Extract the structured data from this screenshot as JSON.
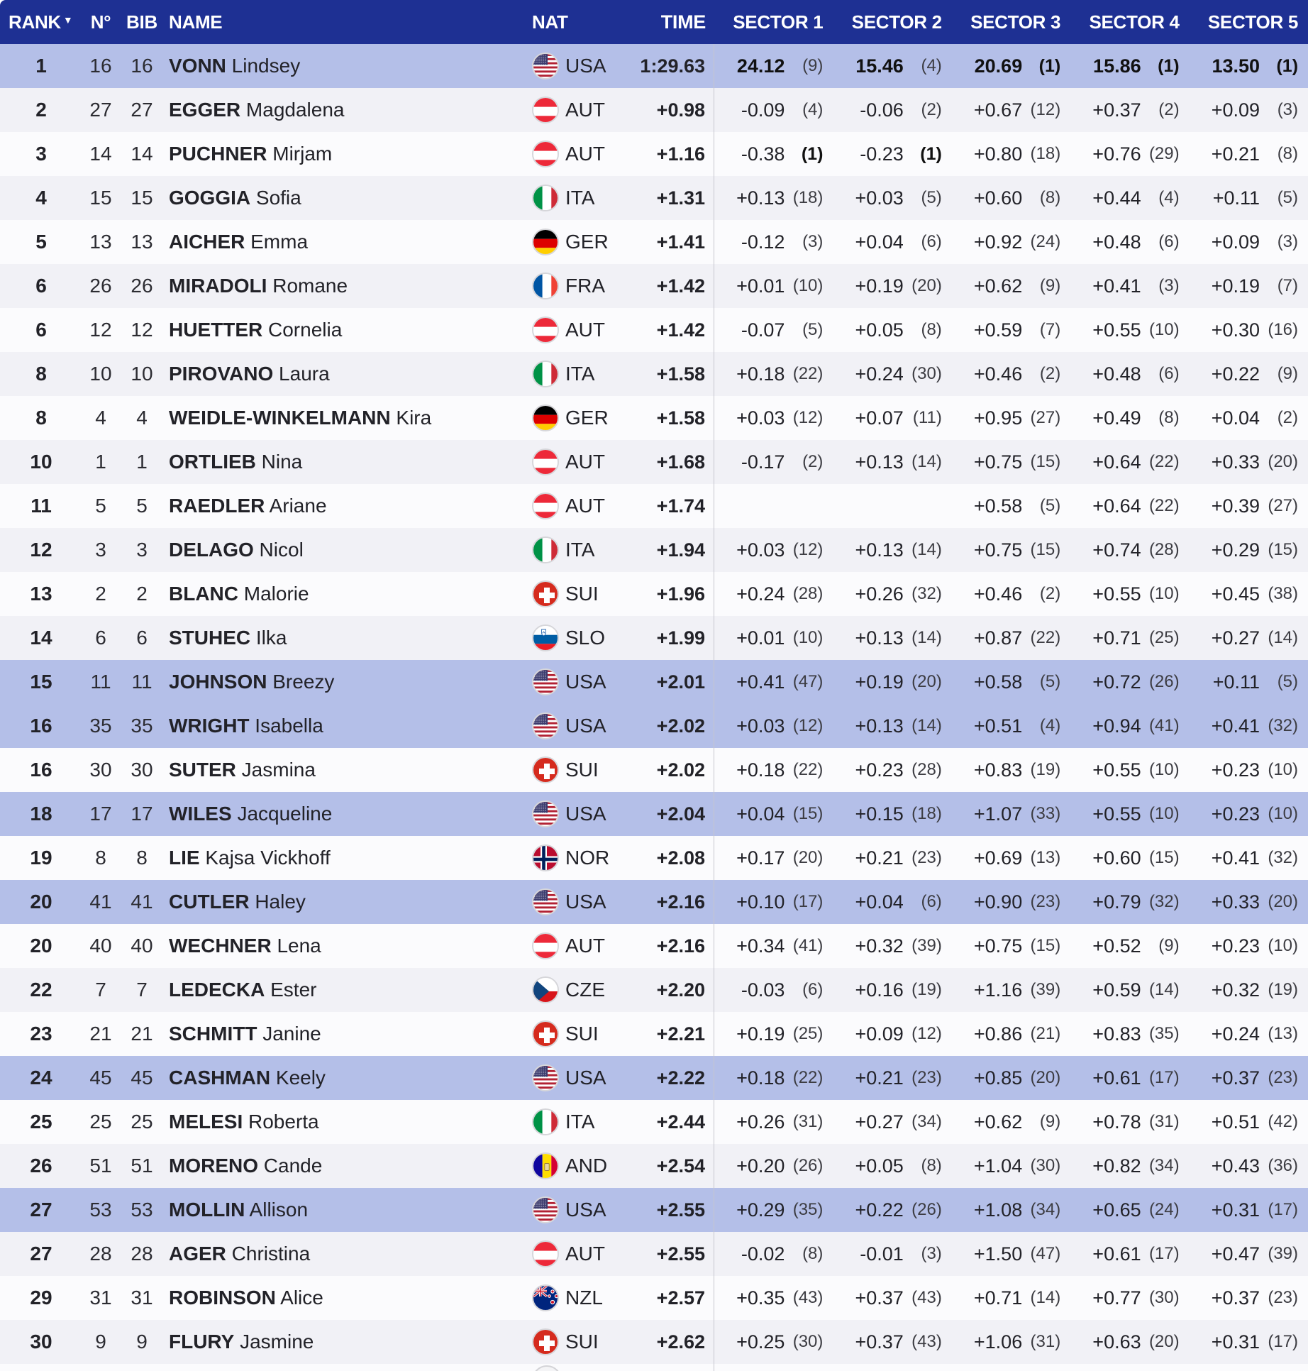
{
  "table": {
    "columns": {
      "rank": "RANK",
      "n": "N°",
      "bib": "BIB",
      "name": "NAME",
      "nat": "NAT",
      "time": "TIME",
      "sectors": [
        "SECTOR 1",
        "SECTOR 2",
        "SECTOR 3",
        "SECTOR 4",
        "SECTOR 5"
      ]
    },
    "sort_arrow": "▼"
  },
  "colors": {
    "header_bg": "#1E3093",
    "highlight_row": "#B4BFE8",
    "row_even": "#F1F1F6",
    "row_odd": "#FBFBFD",
    "divider": "#C6C6CF"
  },
  "rows": [
    {
      "rank": "1",
      "n": "16",
      "bib": "16",
      "last": "VONN",
      "first": "Lindsey",
      "nat": "USA",
      "time": "1:29.63",
      "highlight": true,
      "sectors": [
        {
          "v": "24.12",
          "r": "(9)",
          "vb": true
        },
        {
          "v": "15.46",
          "r": "(4)",
          "vb": true
        },
        {
          "v": "20.69",
          "r": "(1)",
          "vb": true,
          "rb": true
        },
        {
          "v": "15.86",
          "r": "(1)",
          "vb": true,
          "rb": true
        },
        {
          "v": "13.50",
          "r": "(1)",
          "vb": true,
          "rb": true
        }
      ]
    },
    {
      "rank": "2",
      "n": "27",
      "bib": "27",
      "last": "EGGER",
      "first": "Magdalena",
      "nat": "AUT",
      "time": "+0.98",
      "highlight": false,
      "sectors": [
        {
          "v": "-0.09",
          "r": "(4)"
        },
        {
          "v": "-0.06",
          "r": "(2)"
        },
        {
          "v": "+0.67",
          "r": "(12)"
        },
        {
          "v": "+0.37",
          "r": "(2)"
        },
        {
          "v": "+0.09",
          "r": "(3)"
        }
      ]
    },
    {
      "rank": "3",
      "n": "14",
      "bib": "14",
      "last": "PUCHNER",
      "first": "Mirjam",
      "nat": "AUT",
      "time": "+1.16",
      "highlight": false,
      "sectors": [
        {
          "v": "-0.38",
          "r": "(1)",
          "rb": true
        },
        {
          "v": "-0.23",
          "r": "(1)",
          "rb": true
        },
        {
          "v": "+0.80",
          "r": "(18)"
        },
        {
          "v": "+0.76",
          "r": "(29)"
        },
        {
          "v": "+0.21",
          "r": "(8)"
        }
      ]
    },
    {
      "rank": "4",
      "n": "15",
      "bib": "15",
      "last": "GOGGIA",
      "first": "Sofia",
      "nat": "ITA",
      "time": "+1.31",
      "highlight": false,
      "sectors": [
        {
          "v": "+0.13",
          "r": "(18)"
        },
        {
          "v": "+0.03",
          "r": "(5)"
        },
        {
          "v": "+0.60",
          "r": "(8)"
        },
        {
          "v": "+0.44",
          "r": "(4)"
        },
        {
          "v": "+0.11",
          "r": "(5)"
        }
      ]
    },
    {
      "rank": "5",
      "n": "13",
      "bib": "13",
      "last": "AICHER",
      "first": "Emma",
      "nat": "GER",
      "time": "+1.41",
      "highlight": false,
      "sectors": [
        {
          "v": "-0.12",
          "r": "(3)"
        },
        {
          "v": "+0.04",
          "r": "(6)"
        },
        {
          "v": "+0.92",
          "r": "(24)"
        },
        {
          "v": "+0.48",
          "r": "(6)"
        },
        {
          "v": "+0.09",
          "r": "(3)"
        }
      ]
    },
    {
      "rank": "6",
      "n": "26",
      "bib": "26",
      "last": "MIRADOLI",
      "first": "Romane",
      "nat": "FRA",
      "time": "+1.42",
      "highlight": false,
      "sectors": [
        {
          "v": "+0.01",
          "r": "(10)"
        },
        {
          "v": "+0.19",
          "r": "(20)"
        },
        {
          "v": "+0.62",
          "r": "(9)"
        },
        {
          "v": "+0.41",
          "r": "(3)"
        },
        {
          "v": "+0.19",
          "r": "(7)"
        }
      ]
    },
    {
      "rank": "6",
      "n": "12",
      "bib": "12",
      "last": "HUETTER",
      "first": "Cornelia",
      "nat": "AUT",
      "time": "+1.42",
      "highlight": false,
      "sectors": [
        {
          "v": "-0.07",
          "r": "(5)"
        },
        {
          "v": "+0.05",
          "r": "(8)"
        },
        {
          "v": "+0.59",
          "r": "(7)"
        },
        {
          "v": "+0.55",
          "r": "(10)"
        },
        {
          "v": "+0.30",
          "r": "(16)"
        }
      ]
    },
    {
      "rank": "8",
      "n": "10",
      "bib": "10",
      "last": "PIROVANO",
      "first": "Laura",
      "nat": "ITA",
      "time": "+1.58",
      "highlight": false,
      "sectors": [
        {
          "v": "+0.18",
          "r": "(22)"
        },
        {
          "v": "+0.24",
          "r": "(30)"
        },
        {
          "v": "+0.46",
          "r": "(2)"
        },
        {
          "v": "+0.48",
          "r": "(6)"
        },
        {
          "v": "+0.22",
          "r": "(9)"
        }
      ]
    },
    {
      "rank": "8",
      "n": "4",
      "bib": "4",
      "last": "WEIDLE-WINKELMANN",
      "first": "Kira",
      "nat": "GER",
      "time": "+1.58",
      "highlight": false,
      "sectors": [
        {
          "v": "+0.03",
          "r": "(12)"
        },
        {
          "v": "+0.07",
          "r": "(11)"
        },
        {
          "v": "+0.95",
          "r": "(27)"
        },
        {
          "v": "+0.49",
          "r": "(8)"
        },
        {
          "v": "+0.04",
          "r": "(2)"
        }
      ]
    },
    {
      "rank": "10",
      "n": "1",
      "bib": "1",
      "last": "ORTLIEB",
      "first": "Nina",
      "nat": "AUT",
      "time": "+1.68",
      "highlight": false,
      "sectors": [
        {
          "v": "-0.17",
          "r": "(2)"
        },
        {
          "v": "+0.13",
          "r": "(14)"
        },
        {
          "v": "+0.75",
          "r": "(15)"
        },
        {
          "v": "+0.64",
          "r": "(22)"
        },
        {
          "v": "+0.33",
          "r": "(20)"
        }
      ]
    },
    {
      "rank": "11",
      "n": "5",
      "bib": "5",
      "last": "RAEDLER",
      "first": "Ariane",
      "nat": "AUT",
      "time": "+1.74",
      "highlight": false,
      "sectors": [
        {
          "v": "",
          "r": ""
        },
        {
          "v": "",
          "r": ""
        },
        {
          "v": "+0.58",
          "r": "(5)"
        },
        {
          "v": "+0.64",
          "r": "(22)"
        },
        {
          "v": "+0.39",
          "r": "(27)"
        }
      ]
    },
    {
      "rank": "12",
      "n": "3",
      "bib": "3",
      "last": "DELAGO",
      "first": "Nicol",
      "nat": "ITA",
      "time": "+1.94",
      "highlight": false,
      "sectors": [
        {
          "v": "+0.03",
          "r": "(12)"
        },
        {
          "v": "+0.13",
          "r": "(14)"
        },
        {
          "v": "+0.75",
          "r": "(15)"
        },
        {
          "v": "+0.74",
          "r": "(28)"
        },
        {
          "v": "+0.29",
          "r": "(15)"
        }
      ]
    },
    {
      "rank": "13",
      "n": "2",
      "bib": "2",
      "last": "BLANC",
      "first": "Malorie",
      "nat": "SUI",
      "time": "+1.96",
      "highlight": false,
      "sectors": [
        {
          "v": "+0.24",
          "r": "(28)"
        },
        {
          "v": "+0.26",
          "r": "(32)"
        },
        {
          "v": "+0.46",
          "r": "(2)"
        },
        {
          "v": "+0.55",
          "r": "(10)"
        },
        {
          "v": "+0.45",
          "r": "(38)"
        }
      ]
    },
    {
      "rank": "14",
      "n": "6",
      "bib": "6",
      "last": "STUHEC",
      "first": "Ilka",
      "nat": "SLO",
      "time": "+1.99",
      "highlight": false,
      "sectors": [
        {
          "v": "+0.01",
          "r": "(10)"
        },
        {
          "v": "+0.13",
          "r": "(14)"
        },
        {
          "v": "+0.87",
          "r": "(22)"
        },
        {
          "v": "+0.71",
          "r": "(25)"
        },
        {
          "v": "+0.27",
          "r": "(14)"
        }
      ]
    },
    {
      "rank": "15",
      "n": "11",
      "bib": "11",
      "last": "JOHNSON",
      "first": "Breezy",
      "nat": "USA",
      "time": "+2.01",
      "highlight": true,
      "sectors": [
        {
          "v": "+0.41",
          "r": "(47)"
        },
        {
          "v": "+0.19",
          "r": "(20)"
        },
        {
          "v": "+0.58",
          "r": "(5)"
        },
        {
          "v": "+0.72",
          "r": "(26)"
        },
        {
          "v": "+0.11",
          "r": "(5)"
        }
      ]
    },
    {
      "rank": "16",
      "n": "35",
      "bib": "35",
      "last": "WRIGHT",
      "first": "Isabella",
      "nat": "USA",
      "time": "+2.02",
      "highlight": true,
      "sectors": [
        {
          "v": "+0.03",
          "r": "(12)"
        },
        {
          "v": "+0.13",
          "r": "(14)"
        },
        {
          "v": "+0.51",
          "r": "(4)"
        },
        {
          "v": "+0.94",
          "r": "(41)"
        },
        {
          "v": "+0.41",
          "r": "(32)"
        }
      ]
    },
    {
      "rank": "16",
      "n": "30",
      "bib": "30",
      "last": "SUTER",
      "first": "Jasmina",
      "nat": "SUI",
      "time": "+2.02",
      "highlight": false,
      "sectors": [
        {
          "v": "+0.18",
          "r": "(22)"
        },
        {
          "v": "+0.23",
          "r": "(28)"
        },
        {
          "v": "+0.83",
          "r": "(19)"
        },
        {
          "v": "+0.55",
          "r": "(10)"
        },
        {
          "v": "+0.23",
          "r": "(10)"
        }
      ]
    },
    {
      "rank": "18",
      "n": "17",
      "bib": "17",
      "last": "WILES",
      "first": "Jacqueline",
      "nat": "USA",
      "time": "+2.04",
      "highlight": true,
      "sectors": [
        {
          "v": "+0.04",
          "r": "(15)"
        },
        {
          "v": "+0.15",
          "r": "(18)"
        },
        {
          "v": "+1.07",
          "r": "(33)"
        },
        {
          "v": "+0.55",
          "r": "(10)"
        },
        {
          "v": "+0.23",
          "r": "(10)"
        }
      ]
    },
    {
      "rank": "19",
      "n": "8",
      "bib": "8",
      "last": "LIE",
      "first": "Kajsa Vickhoff",
      "nat": "NOR",
      "time": "+2.08",
      "highlight": false,
      "sectors": [
        {
          "v": "+0.17",
          "r": "(20)"
        },
        {
          "v": "+0.21",
          "r": "(23)"
        },
        {
          "v": "+0.69",
          "r": "(13)"
        },
        {
          "v": "+0.60",
          "r": "(15)"
        },
        {
          "v": "+0.41",
          "r": "(32)"
        }
      ]
    },
    {
      "rank": "20",
      "n": "41",
      "bib": "41",
      "last": "CUTLER",
      "first": "Haley",
      "nat": "USA",
      "time": "+2.16",
      "highlight": true,
      "sectors": [
        {
          "v": "+0.10",
          "r": "(17)"
        },
        {
          "v": "+0.04",
          "r": "(6)"
        },
        {
          "v": "+0.90",
          "r": "(23)"
        },
        {
          "v": "+0.79",
          "r": "(32)"
        },
        {
          "v": "+0.33",
          "r": "(20)"
        }
      ]
    },
    {
      "rank": "20",
      "n": "40",
      "bib": "40",
      "last": "WECHNER",
      "first": "Lena",
      "nat": "AUT",
      "time": "+2.16",
      "highlight": false,
      "sectors": [
        {
          "v": "+0.34",
          "r": "(41)"
        },
        {
          "v": "+0.32",
          "r": "(39)"
        },
        {
          "v": "+0.75",
          "r": "(15)"
        },
        {
          "v": "+0.52",
          "r": "(9)"
        },
        {
          "v": "+0.23",
          "r": "(10)"
        }
      ]
    },
    {
      "rank": "22",
      "n": "7",
      "bib": "7",
      "last": "LEDECKA",
      "first": "Ester",
      "nat": "CZE",
      "time": "+2.20",
      "highlight": false,
      "sectors": [
        {
          "v": "-0.03",
          "r": "(6)"
        },
        {
          "v": "+0.16",
          "r": "(19)"
        },
        {
          "v": "+1.16",
          "r": "(39)"
        },
        {
          "v": "+0.59",
          "r": "(14)"
        },
        {
          "v": "+0.32",
          "r": "(19)"
        }
      ]
    },
    {
      "rank": "23",
      "n": "21",
      "bib": "21",
      "last": "SCHMITT",
      "first": "Janine",
      "nat": "SUI",
      "time": "+2.21",
      "highlight": false,
      "sectors": [
        {
          "v": "+0.19",
          "r": "(25)"
        },
        {
          "v": "+0.09",
          "r": "(12)"
        },
        {
          "v": "+0.86",
          "r": "(21)"
        },
        {
          "v": "+0.83",
          "r": "(35)"
        },
        {
          "v": "+0.24",
          "r": "(13)"
        }
      ]
    },
    {
      "rank": "24",
      "n": "45",
      "bib": "45",
      "last": "CASHMAN",
      "first": "Keely",
      "nat": "USA",
      "time": "+2.22",
      "highlight": true,
      "sectors": [
        {
          "v": "+0.18",
          "r": "(22)"
        },
        {
          "v": "+0.21",
          "r": "(23)"
        },
        {
          "v": "+0.85",
          "r": "(20)"
        },
        {
          "v": "+0.61",
          "r": "(17)"
        },
        {
          "v": "+0.37",
          "r": "(23)"
        }
      ]
    },
    {
      "rank": "25",
      "n": "25",
      "bib": "25",
      "last": "MELESI",
      "first": "Roberta",
      "nat": "ITA",
      "time": "+2.44",
      "highlight": false,
      "sectors": [
        {
          "v": "+0.26",
          "r": "(31)"
        },
        {
          "v": "+0.27",
          "r": "(34)"
        },
        {
          "v": "+0.62",
          "r": "(9)"
        },
        {
          "v": "+0.78",
          "r": "(31)"
        },
        {
          "v": "+0.51",
          "r": "(42)"
        }
      ]
    },
    {
      "rank": "26",
      "n": "51",
      "bib": "51",
      "last": "MORENO",
      "first": "Cande",
      "nat": "AND",
      "time": "+2.54",
      "highlight": false,
      "sectors": [
        {
          "v": "+0.20",
          "r": "(26)"
        },
        {
          "v": "+0.05",
          "r": "(8)"
        },
        {
          "v": "+1.04",
          "r": "(30)"
        },
        {
          "v": "+0.82",
          "r": "(34)"
        },
        {
          "v": "+0.43",
          "r": "(36)"
        }
      ]
    },
    {
      "rank": "27",
      "n": "53",
      "bib": "53",
      "last": "MOLLIN",
      "first": "Allison",
      "nat": "USA",
      "time": "+2.55",
      "highlight": true,
      "sectors": [
        {
          "v": "+0.29",
          "r": "(35)"
        },
        {
          "v": "+0.22",
          "r": "(26)"
        },
        {
          "v": "+1.08",
          "r": "(34)"
        },
        {
          "v": "+0.65",
          "r": "(24)"
        },
        {
          "v": "+0.31",
          "r": "(17)"
        }
      ]
    },
    {
      "rank": "27",
      "n": "28",
      "bib": "28",
      "last": "AGER",
      "first": "Christina",
      "nat": "AUT",
      "time": "+2.55",
      "highlight": false,
      "sectors": [
        {
          "v": "-0.02",
          "r": "(8)"
        },
        {
          "v": "-0.01",
          "r": "(3)"
        },
        {
          "v": "+1.50",
          "r": "(47)"
        },
        {
          "v": "+0.61",
          "r": "(17)"
        },
        {
          "v": "+0.47",
          "r": "(39)"
        }
      ]
    },
    {
      "rank": "29",
      "n": "31",
      "bib": "31",
      "last": "ROBINSON",
      "first": "Alice",
      "nat": "NZL",
      "time": "+2.57",
      "highlight": false,
      "sectors": [
        {
          "v": "+0.35",
          "r": "(43)"
        },
        {
          "v": "+0.37",
          "r": "(43)"
        },
        {
          "v": "+0.71",
          "r": "(14)"
        },
        {
          "v": "+0.77",
          "r": "(30)"
        },
        {
          "v": "+0.37",
          "r": "(23)"
        }
      ]
    },
    {
      "rank": "30",
      "n": "9",
      "bib": "9",
      "last": "FLURY",
      "first": "Jasmine",
      "nat": "SUI",
      "time": "+2.62",
      "highlight": false,
      "sectors": [
        {
          "v": "+0.25",
          "r": "(30)"
        },
        {
          "v": "+0.37",
          "r": "(43)"
        },
        {
          "v": "+1.06",
          "r": "(31)"
        },
        {
          "v": "+0.63",
          "r": "(20)"
        },
        {
          "v": "+0.31",
          "r": "(17)"
        }
      ]
    }
  ]
}
